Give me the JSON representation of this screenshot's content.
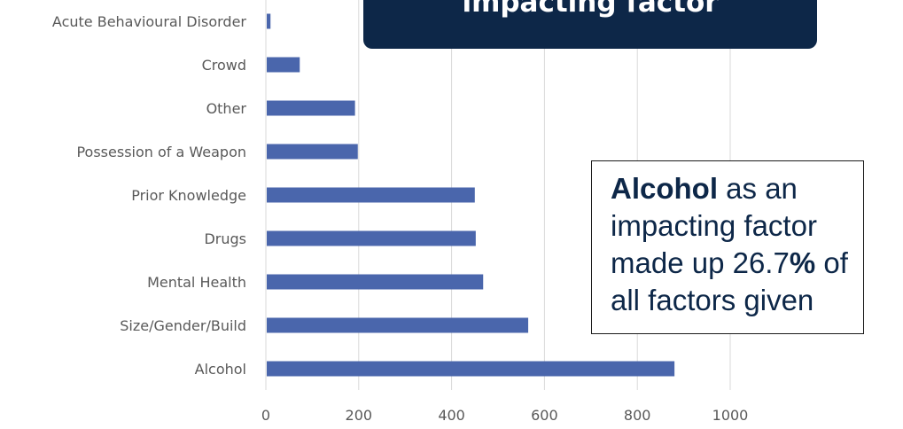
{
  "chart_data": {
    "type": "bar",
    "orientation": "horizontal",
    "categories": [
      "Acute Behavioural Disorder",
      "Crowd",
      "Other",
      "Possession of a Weapon",
      "Prior Knowledge",
      "Drugs",
      "Mental Health",
      "Size/Gender/Build",
      "Alcohol"
    ],
    "values": [
      10,
      73,
      192,
      198,
      450,
      452,
      468,
      565,
      880
    ],
    "xlim": [
      0,
      1000
    ],
    "x_ticks": [
      "0",
      "200",
      "400",
      "600",
      "800",
      "1000"
    ],
    "grid": true,
    "bar_color": "#4a66ac"
  },
  "title": {
    "line1": "impacting factor"
  },
  "callout": {
    "bold_word": "Alcohol",
    "part1": " as an impacting factor made up 26.7",
    "percent": "%",
    "part2": " of all factors given"
  }
}
